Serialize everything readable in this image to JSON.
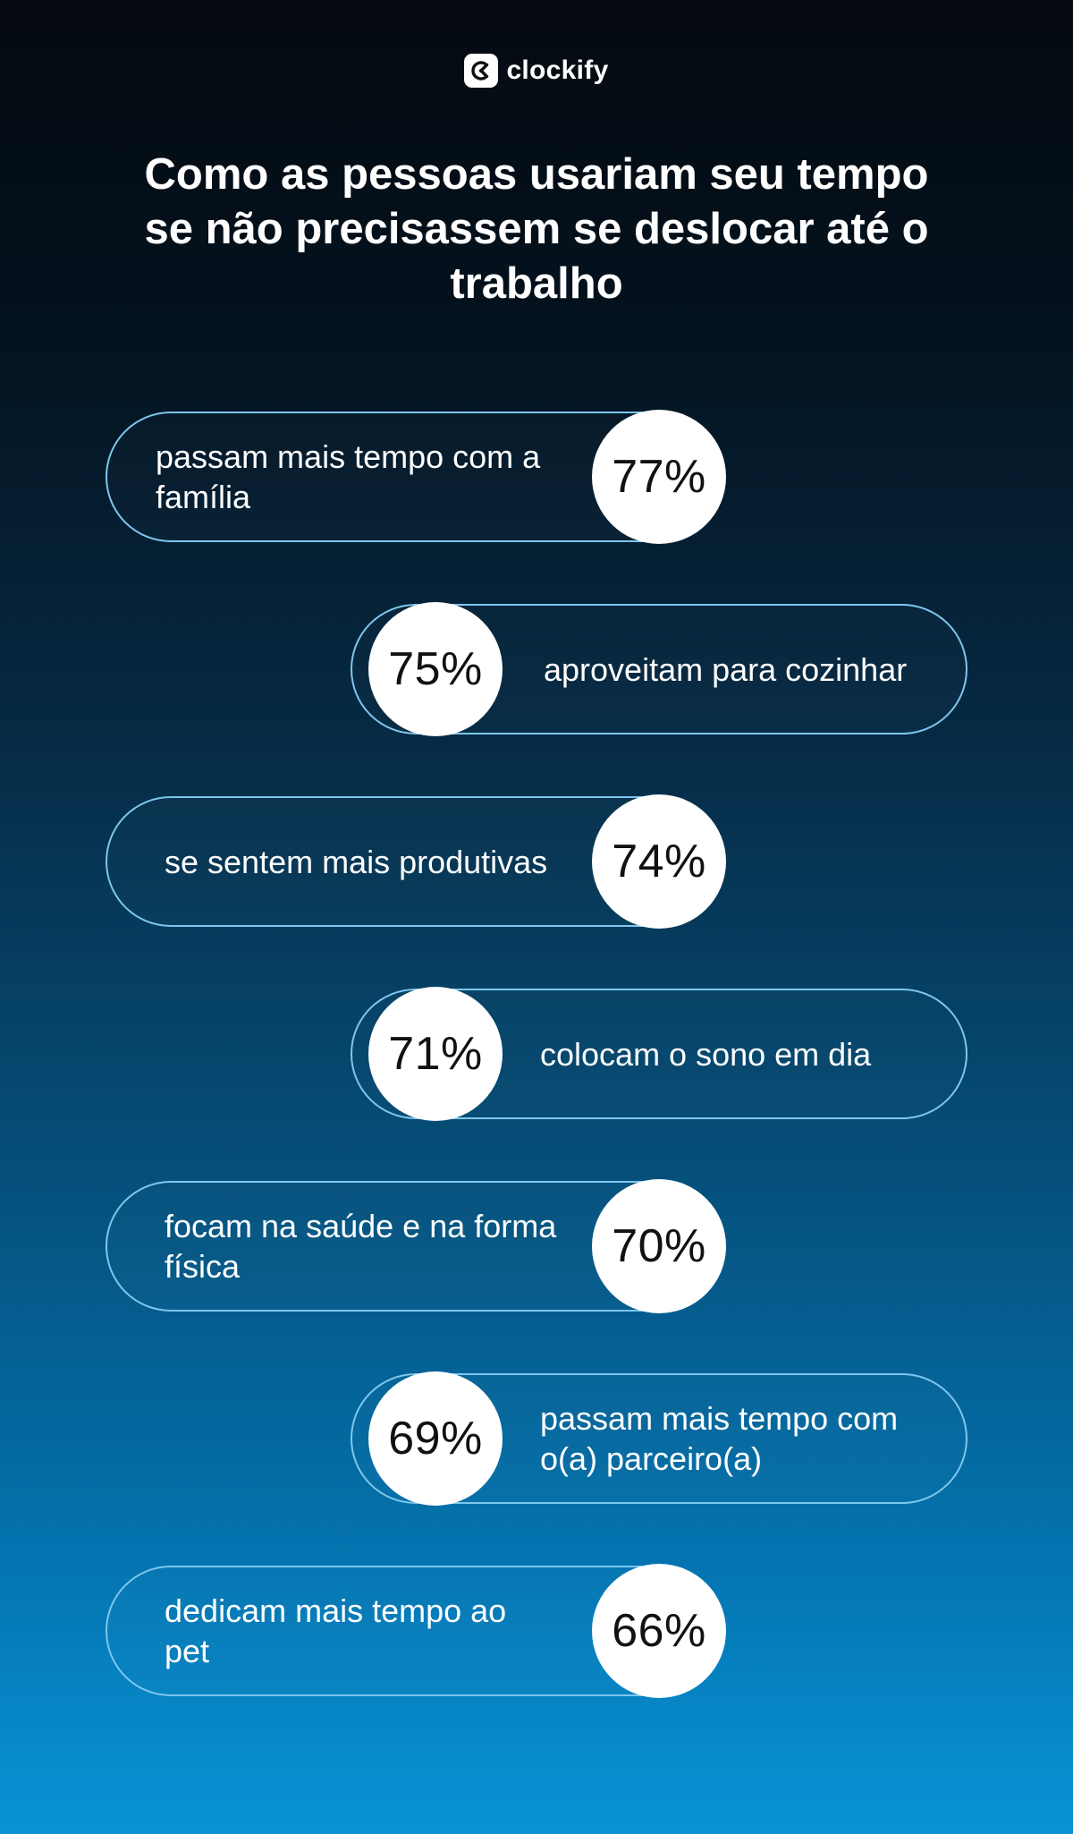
{
  "brand": {
    "name": "clockify"
  },
  "headline": "Como as pessoas usariam seu tempo se não precisassem se deslocar até o trabalho",
  "stats": [
    {
      "value": "77%",
      "percent": 77,
      "label": "passam mais tempo com a família"
    },
    {
      "value": "75%",
      "percent": 75,
      "label": "aproveitam para cozinhar"
    },
    {
      "value": "74%",
      "percent": 74,
      "label": "se sentem mais produtivas"
    },
    {
      "value": "71%",
      "percent": 71,
      "label": "colocam o sono em dia"
    },
    {
      "value": "70%",
      "percent": 70,
      "label": "focam na saúde e na forma física"
    },
    {
      "value": "69%",
      "percent": 69,
      "label": "passam mais tempo com o(a) parceiro(a)"
    },
    {
      "value": "66%",
      "percent": 66,
      "label": "dedicam mais tempo ao pet"
    }
  ],
  "colors": {
    "pill_border": "#7ec6ec",
    "circle_fill": "#ffffff",
    "circle_text": "#111111",
    "background_top": "#050a10",
    "background_bottom": "#0893d6"
  }
}
